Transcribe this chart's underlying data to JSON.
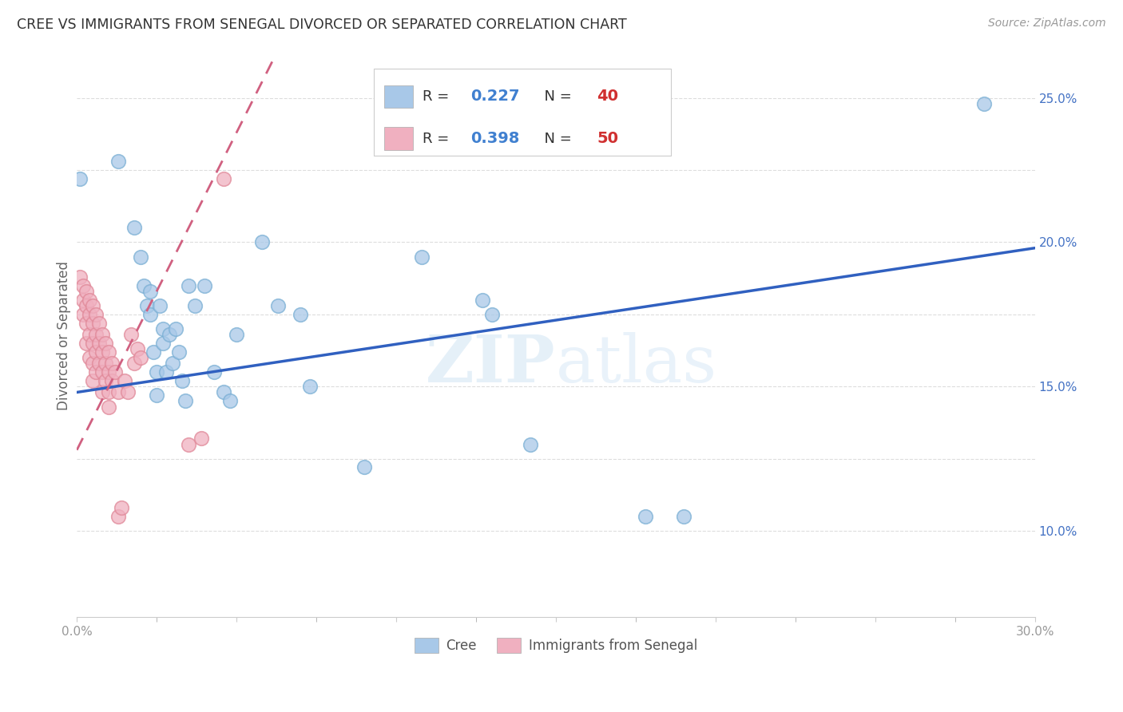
{
  "title": "CREE VS IMMIGRANTS FROM SENEGAL DIVORCED OR SEPARATED CORRELATION CHART",
  "source": "Source: ZipAtlas.com",
  "ylabel": "Divorced or Separated",
  "cree_color": "#a8c8e8",
  "cree_edge_color": "#7aafd4",
  "senegal_color": "#f0b0c0",
  "senegal_edge_color": "#e08898",
  "cree_line_color": "#3060c0",
  "senegal_line_color": "#d06080",
  "R_text_color": "#4080d0",
  "N_text_color": "#d03030",
  "watermark": "ZIPatlas",
  "xlim": [
    0.0,
    0.3
  ],
  "ylim": [
    0.07,
    0.265
  ],
  "cree_points": [
    [
      0.001,
      0.222
    ],
    [
      0.013,
      0.228
    ],
    [
      0.018,
      0.205
    ],
    [
      0.02,
      0.195
    ],
    [
      0.021,
      0.185
    ],
    [
      0.022,
      0.178
    ],
    [
      0.023,
      0.183
    ],
    [
      0.023,
      0.175
    ],
    [
      0.024,
      0.162
    ],
    [
      0.025,
      0.155
    ],
    [
      0.025,
      0.147
    ],
    [
      0.026,
      0.178
    ],
    [
      0.027,
      0.17
    ],
    [
      0.027,
      0.165
    ],
    [
      0.028,
      0.155
    ],
    [
      0.029,
      0.168
    ],
    [
      0.03,
      0.158
    ],
    [
      0.031,
      0.17
    ],
    [
      0.032,
      0.162
    ],
    [
      0.033,
      0.152
    ],
    [
      0.034,
      0.145
    ],
    [
      0.035,
      0.185
    ],
    [
      0.037,
      0.178
    ],
    [
      0.04,
      0.185
    ],
    [
      0.043,
      0.155
    ],
    [
      0.046,
      0.148
    ],
    [
      0.048,
      0.145
    ],
    [
      0.05,
      0.168
    ],
    [
      0.058,
      0.2
    ],
    [
      0.063,
      0.178
    ],
    [
      0.07,
      0.175
    ],
    [
      0.073,
      0.15
    ],
    [
      0.09,
      0.122
    ],
    [
      0.108,
      0.195
    ],
    [
      0.127,
      0.18
    ],
    [
      0.13,
      0.175
    ],
    [
      0.142,
      0.13
    ],
    [
      0.178,
      0.105
    ],
    [
      0.19,
      0.105
    ],
    [
      0.284,
      0.248
    ]
  ],
  "senegal_points": [
    [
      0.001,
      0.188
    ],
    [
      0.002,
      0.185
    ],
    [
      0.002,
      0.18
    ],
    [
      0.002,
      0.175
    ],
    [
      0.003,
      0.183
    ],
    [
      0.003,
      0.178
    ],
    [
      0.003,
      0.172
    ],
    [
      0.003,
      0.165
    ],
    [
      0.004,
      0.18
    ],
    [
      0.004,
      0.175
    ],
    [
      0.004,
      0.168
    ],
    [
      0.004,
      0.16
    ],
    [
      0.005,
      0.178
    ],
    [
      0.005,
      0.172
    ],
    [
      0.005,
      0.165
    ],
    [
      0.005,
      0.158
    ],
    [
      0.005,
      0.152
    ],
    [
      0.006,
      0.175
    ],
    [
      0.006,
      0.168
    ],
    [
      0.006,
      0.162
    ],
    [
      0.006,
      0.155
    ],
    [
      0.007,
      0.172
    ],
    [
      0.007,
      0.165
    ],
    [
      0.007,
      0.158
    ],
    [
      0.008,
      0.168
    ],
    [
      0.008,
      0.162
    ],
    [
      0.008,
      0.155
    ],
    [
      0.008,
      0.148
    ],
    [
      0.009,
      0.165
    ],
    [
      0.009,
      0.158
    ],
    [
      0.009,
      0.152
    ],
    [
      0.01,
      0.162
    ],
    [
      0.01,
      0.155
    ],
    [
      0.01,
      0.148
    ],
    [
      0.01,
      0.143
    ],
    [
      0.011,
      0.158
    ],
    [
      0.011,
      0.152
    ],
    [
      0.012,
      0.155
    ],
    [
      0.013,
      0.148
    ],
    [
      0.013,
      0.105
    ],
    [
      0.014,
      0.108
    ],
    [
      0.015,
      0.152
    ],
    [
      0.016,
      0.148
    ],
    [
      0.017,
      0.168
    ],
    [
      0.018,
      0.158
    ],
    [
      0.019,
      0.163
    ],
    [
      0.02,
      0.16
    ],
    [
      0.035,
      0.13
    ],
    [
      0.039,
      0.132
    ],
    [
      0.046,
      0.222
    ]
  ]
}
